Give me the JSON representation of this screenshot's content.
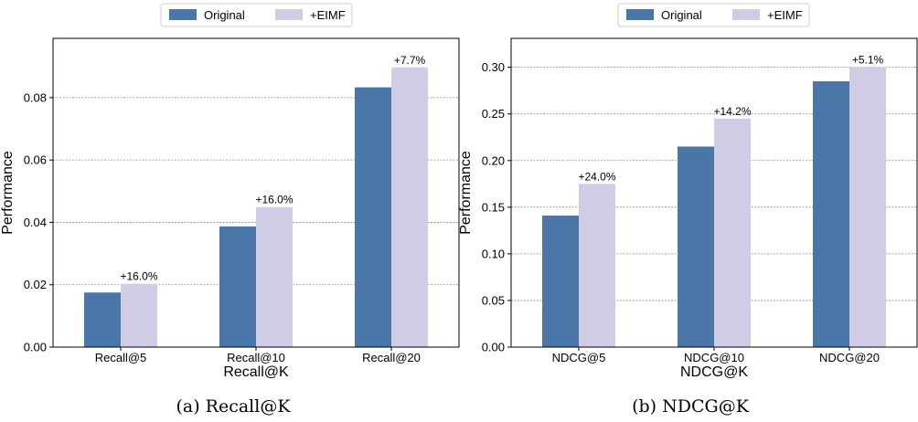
{
  "colors": {
    "original": "#4a76a8",
    "eimf": "#d0cce4",
    "grid": "#8a8a8a",
    "axis": "#000000"
  },
  "chart_data": [
    {
      "type": "bar",
      "caption": "(a) Recall@K",
      "categories": [
        "Recall@5",
        "Recall@10",
        "Recall@20"
      ],
      "series": [
        {
          "name": "Original",
          "values": [
            0.0175,
            0.0387,
            0.0833
          ]
        },
        {
          "name": "+EIMF",
          "values": [
            0.0203,
            0.0449,
            0.0897
          ]
        }
      ],
      "annotations": [
        "+16.0%",
        "+16.0%",
        "+7.7%"
      ],
      "xlabel": "Recall@K",
      "ylabel": "Performance",
      "ylim": [
        0,
        0.099
      ],
      "yticks": [
        0,
        0.02,
        0.04,
        0.06,
        0.08
      ],
      "ytick_labels": [
        "0.00",
        "0.02",
        "0.04",
        "0.06",
        "0.08"
      ],
      "grid": "horizontal dotted",
      "legend": "top-center"
    },
    {
      "type": "bar",
      "caption": "(b) NDCG@K",
      "categories": [
        "NDCG@5",
        "NDCG@10",
        "NDCG@20"
      ],
      "series": [
        {
          "name": "Original",
          "values": [
            0.141,
            0.215,
            0.285
          ]
        },
        {
          "name": "+EIMF",
          "values": [
            0.175,
            0.245,
            0.3
          ]
        }
      ],
      "annotations": [
        "+24.0%",
        "+14.2%",
        "+5.1%"
      ],
      "xlabel": "NDCG@K",
      "ylabel": "Performance",
      "ylim": [
        0,
        0.331
      ],
      "yticks": [
        0,
        0.05,
        0.1,
        0.15,
        0.2,
        0.25,
        0.3
      ],
      "ytick_labels": [
        "0.00",
        "0.05",
        "0.10",
        "0.15",
        "0.20",
        "0.25",
        "0.30"
      ],
      "grid": "horizontal dotted",
      "legend": "top-center"
    }
  ]
}
